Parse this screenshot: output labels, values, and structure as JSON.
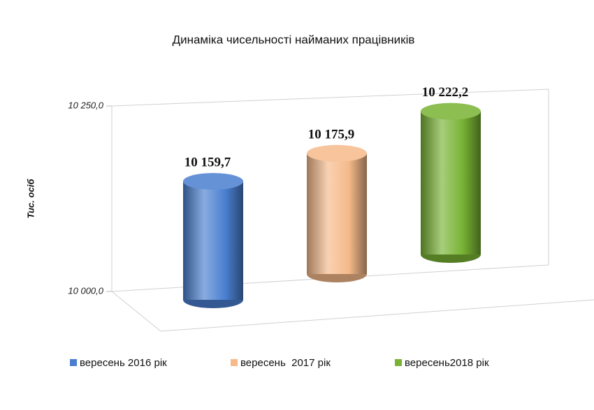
{
  "chart_data": {
    "type": "bar",
    "title": "Динаміка чисельності найманих працівників",
    "y_label": "Тис. осіб",
    "ylim": [
      10000,
      10250
    ],
    "yticks": [
      {
        "value": 10000,
        "label": "10 000,0"
      },
      {
        "value": 10250,
        "label": "10 250,0"
      }
    ],
    "series": [
      {
        "name": "вересень 2016 рік",
        "color": "#4a7fd0",
        "values": [
          10159.7
        ],
        "value_labels": [
          "10 159,7"
        ]
      },
      {
        "name": "вересень  2017 рік",
        "color": "#f5b98a",
        "values": [
          10175.9
        ],
        "value_labels": [
          "10 175,9"
        ]
      },
      {
        "name": "вересень2018 рік",
        "color": "#78b334",
        "values": [
          10222.2
        ],
        "value_labels": [
          "10 222,2"
        ]
      }
    ]
  }
}
